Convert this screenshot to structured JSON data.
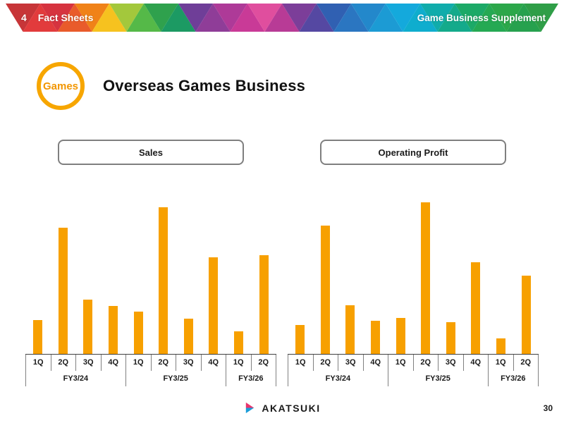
{
  "header": {
    "section_number": "4",
    "section_title": "Fact Sheets",
    "right_title": "Game Business Supplement",
    "palette": [
      "#C73538",
      "#E23B3C",
      "#D6333F",
      "#E95B2B",
      "#F08218",
      "#F6C21F",
      "#A3C83C",
      "#55B948",
      "#2FA14D",
      "#1C9A63",
      "#6F3E98",
      "#8F3D98",
      "#AE3A98",
      "#C93A97",
      "#E04E9E",
      "#B83B96",
      "#7C3E99",
      "#5548A2",
      "#3060B2",
      "#2B76C1",
      "#2388CB",
      "#1C9BD4",
      "#14A9DC",
      "#0FADCE",
      "#10ACAB",
      "#14AA8B",
      "#1CA967",
      "#25A953",
      "#2CA74A",
      "#27A14E",
      "#2F9E47"
    ]
  },
  "page": {
    "badge_label": "Games",
    "title": "Overseas Games Business",
    "footer_logo_text": "AKATSUKI",
    "page_number": "30",
    "accent_orange": "#F7A000"
  },
  "chart_data": [
    {
      "type": "bar",
      "title": "Sales",
      "categories": [
        "1Q",
        "2Q",
        "3Q",
        "4Q",
        "1Q",
        "2Q",
        "3Q",
        "4Q",
        "1Q",
        "2Q"
      ],
      "groups": [
        {
          "label": "FY3/24",
          "span": 4
        },
        {
          "label": "FY3/25",
          "span": 4
        },
        {
          "label": "FY3/26",
          "span": 2
        }
      ],
      "values": [
        50,
        185,
        80,
        70,
        62,
        215,
        52,
        142,
        33,
        145
      ],
      "ylim": [
        0,
        240
      ],
      "bar_color": "#F7A000",
      "value_axis_shown": false,
      "grid": false,
      "legend": "none"
    },
    {
      "type": "bar",
      "title": "Operating Profit",
      "categories": [
        "1Q",
        "2Q",
        "3Q",
        "4Q",
        "1Q",
        "2Q",
        "3Q",
        "4Q",
        "1Q",
        "2Q"
      ],
      "groups": [
        {
          "label": "FY3/24",
          "span": 4
        },
        {
          "label": "FY3/25",
          "span": 4
        },
        {
          "label": "FY3/26",
          "span": 2
        }
      ],
      "values": [
        42,
        188,
        71,
        49,
        53,
        222,
        47,
        134,
        23,
        115
      ],
      "ylim": [
        0,
        240
      ],
      "bar_color": "#F7A000",
      "value_axis_shown": false,
      "grid": false,
      "legend": "none"
    }
  ]
}
